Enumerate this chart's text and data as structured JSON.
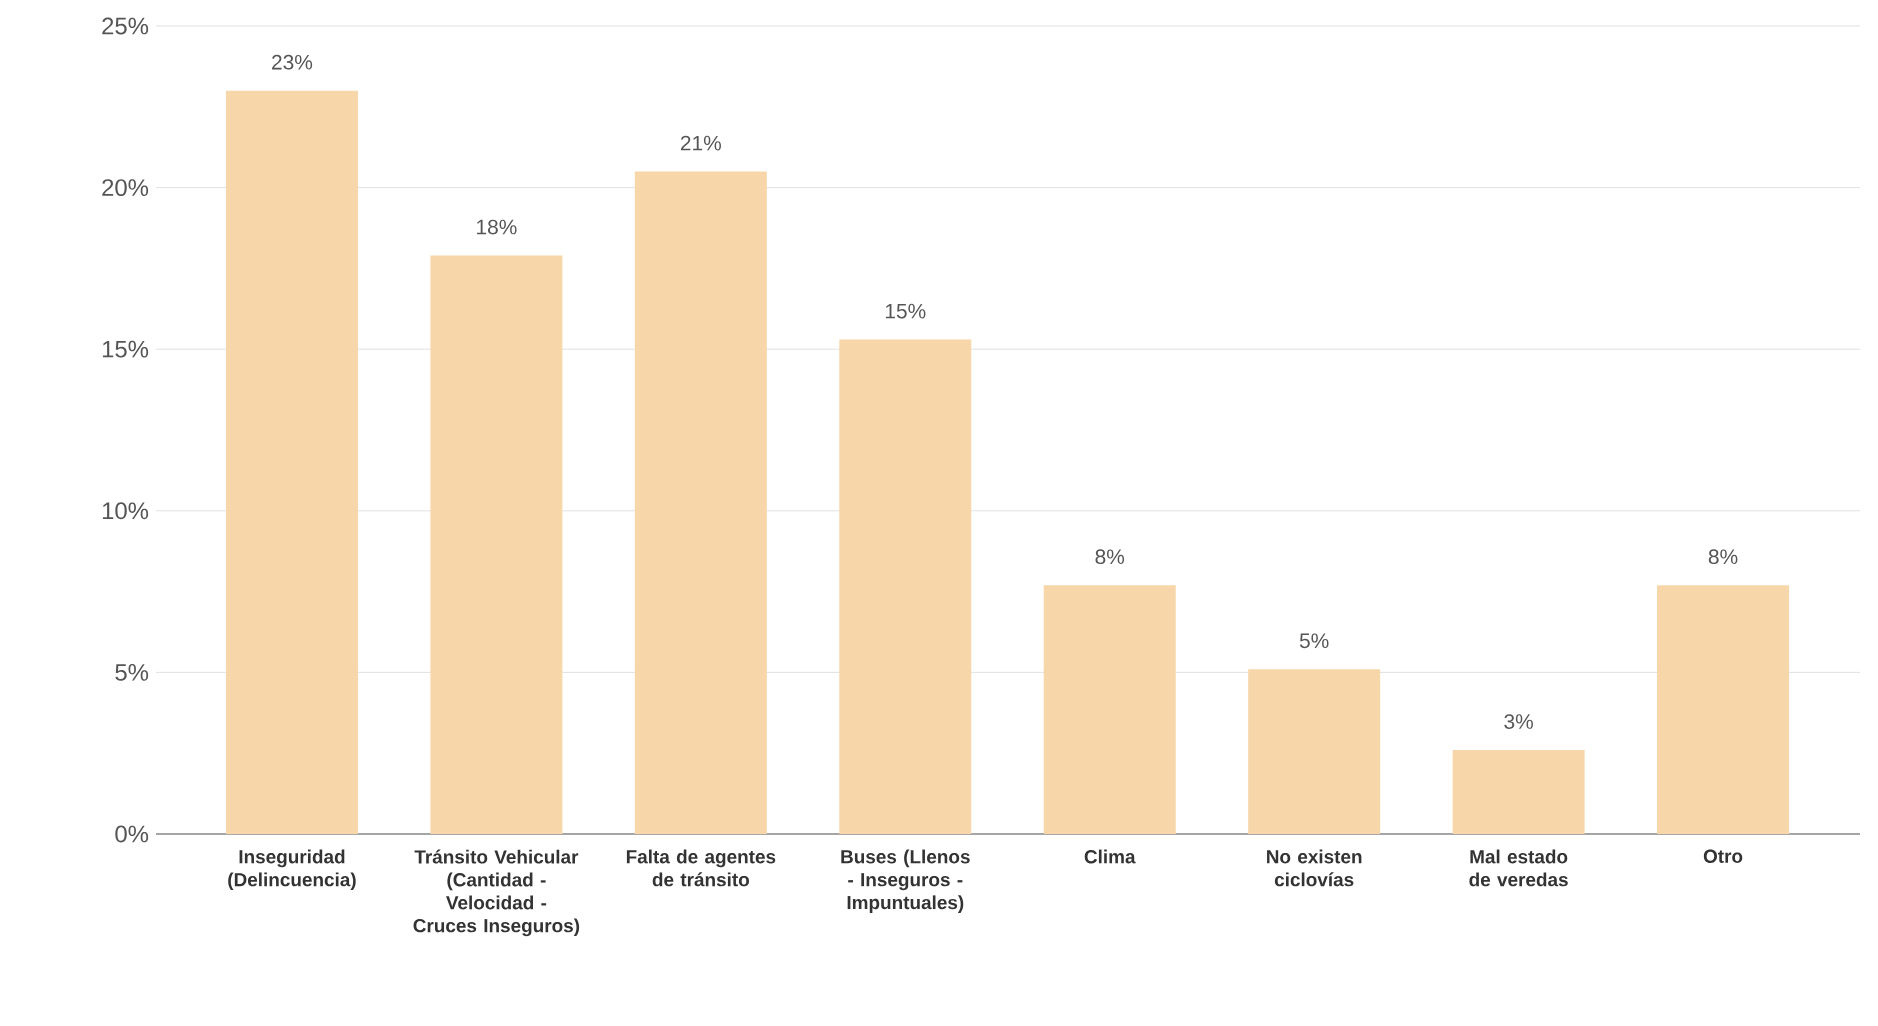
{
  "chart_data": {
    "type": "bar",
    "categories": [
      "Inseguridad (Delincuencia)",
      "Tránsito Vehicular (Cantidad - Velocidad - Cruces Inseguros)",
      "Falta de agentes de tránsito",
      "Buses (Llenos - Inseguros - Impuntuales)",
      "Clima",
      "No existen ciclovías",
      "Mal estado de veredas",
      "Otro"
    ],
    "values": [
      23.0,
      17.9,
      20.5,
      15.3,
      7.7,
      5.1,
      2.6,
      7.7
    ],
    "value_labels": [
      "23%",
      "18%",
      "21%",
      "15%",
      "8%",
      "5%",
      "3%",
      "8%"
    ],
    "color": "#f7d7a9",
    "ylim": [
      0,
      25
    ],
    "yticks": [
      {
        "value": 0,
        "label": "0%"
      },
      {
        "value": 5,
        "label": "5%"
      },
      {
        "value": 10,
        "label": "10%"
      },
      {
        "value": 15,
        "label": "15%"
      },
      {
        "value": 20,
        "label": "20%"
      },
      {
        "value": 25,
        "label": "25%"
      }
    ],
    "grid": "y"
  }
}
